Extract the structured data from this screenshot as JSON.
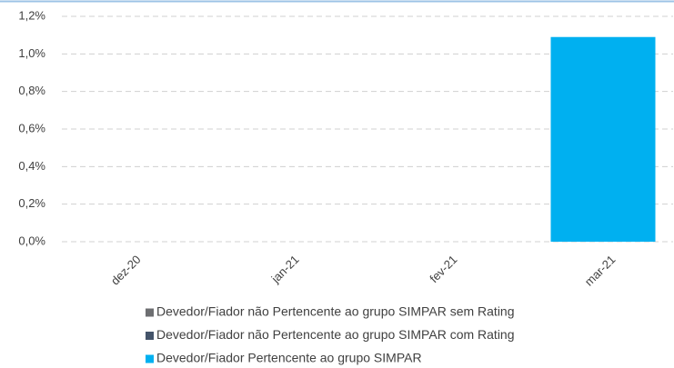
{
  "chart_data": {
    "type": "stacked_bar",
    "categories": [
      "dez-20",
      "jan-21",
      "fev-21",
      "mar-21"
    ],
    "series": [
      {
        "name": "Devedor/Fiador não Pertencente ao grupo SIMPAR sem Rating",
        "color": "#6d6e71",
        "values": [
          0,
          0,
          0,
          0
        ]
      },
      {
        "name": "Devedor/Fiador não Pertencente ao grupo SIMPAR com Rating",
        "color": "#44546a",
        "values": [
          0,
          0,
          0,
          0
        ]
      },
      {
        "name": "Devedor/Fiador Pertencente ao grupo SIMPAR",
        "color": "#00b0f0",
        "values": [
          0,
          0,
          0,
          1.09
        ]
      }
    ],
    "ylim": [
      0,
      1.2
    ],
    "yticks": [
      {
        "value": 0,
        "label": "0,0%"
      },
      {
        "value": 0.2,
        "label": "0,2%"
      },
      {
        "value": 0.4,
        "label": "0,4%"
      },
      {
        "value": 0.6,
        "label": "0,6%"
      },
      {
        "value": 0.8,
        "label": "0,8%"
      },
      {
        "value": 1.0,
        "label": "1,0%"
      },
      {
        "value": 1.2,
        "label": "1,2%"
      }
    ],
    "grid": true
  }
}
